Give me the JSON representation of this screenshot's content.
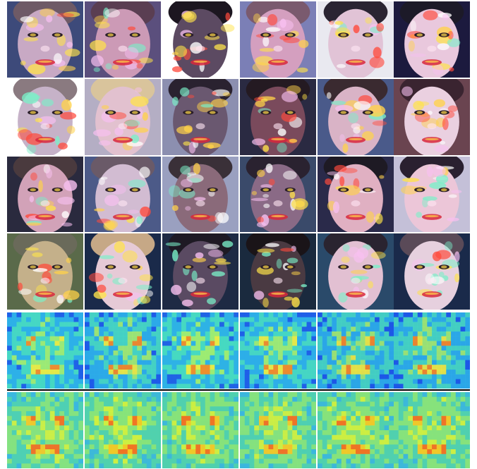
{
  "figure": {
    "rows": [
      {
        "kind": "face-overlay",
        "cells": [
          {
            "skin": "#c8a9c4",
            "hair": "#6e5a66",
            "bg": "#3d4a7a"
          },
          {
            "skin": "#cc9ab6",
            "hair": "#5a3e52",
            "bg": "#5b4f7d"
          },
          {
            "skin": "#5c4a62",
            "hair": "#1c1620",
            "bg": "#ffffff"
          },
          {
            "skin": "#d49fbf",
            "hair": "#7a5a6e",
            "bg": "#7b7fb6"
          },
          {
            "skin": "#e1c3d6",
            "hair": "#2a2432",
            "bg": "#e9e9f0"
          },
          {
            "skin": "#e9c8dd",
            "hair": "#1c1a28",
            "bg": "#1c1a3e"
          }
        ]
      },
      {
        "kind": "face-overlay",
        "cells": [
          {
            "skin": "#c6b2c8",
            "hair": "#8a7a80",
            "bg": "#ffffff"
          },
          {
            "skin": "#e2c1cf",
            "hair": "#d9c49c",
            "bg": "#b4aec4"
          },
          {
            "skin": "#6a5870",
            "hair": "#2a2230",
            "bg": "#8c8fb0"
          },
          {
            "skin": "#7a4a5c",
            "hair": "#241a22",
            "bg": "#2a2a42"
          },
          {
            "skin": "#d9b3c6",
            "hair": "#3a2a30",
            "bg": "#4a5a8a"
          },
          {
            "skin": "#ead0e0",
            "hair": "#3a2430",
            "bg": "#6a4450"
          }
        ]
      },
      {
        "kind": "face-overlay",
        "cells": [
          {
            "skin": "#d2a2b8",
            "hair": "#4a3a3e",
            "bg": "#2a2a3e"
          },
          {
            "skin": "#d2bcd2",
            "hair": "#6a5a68",
            "bg": "#4c5a88"
          },
          {
            "skin": "#8a6a7a",
            "hair": "#3a3038",
            "bg": "#9aa0c0"
          },
          {
            "skin": "#8a6a86",
            "hair": "#2a2230",
            "bg": "#3a4a6a"
          },
          {
            "skin": "#e0b0c2",
            "hair": "#1e1a24",
            "bg": "#2a2a4a"
          },
          {
            "skin": "#ecc6d8",
            "hair": "#2a2030",
            "bg": "#c4c0d8"
          }
        ]
      },
      {
        "kind": "face-overlay",
        "cells": [
          {
            "skin": "#c4b08a",
            "hair": "#6a6a5a",
            "bg": "#5a6a4a"
          },
          {
            "skin": "#e6cad6",
            "hair": "#c6a886",
            "bg": "#1a2a4a"
          },
          {
            "skin": "#5a4a62",
            "hair": "#1e1a24",
            "bg": "#1e2a44"
          },
          {
            "skin": "#4a3a42",
            "hair": "#1a1418",
            "bg": "#1a2a3e"
          },
          {
            "skin": "#e2c0d2",
            "hair": "#2a2430",
            "bg": "#2a4a6a"
          },
          {
            "skin": "#e6d0de",
            "hair": "#5a4a58",
            "bg": "#1a2a4a"
          }
        ]
      },
      {
        "kind": "heatmap",
        "cells": [
          {
            "base": "#2eb0e8"
          },
          {
            "base": "#1e6ce6"
          },
          {
            "base": "#38c4c8"
          },
          {
            "base": "#2a9ae8"
          },
          {
            "base": "#1840e0"
          },
          {
            "base": "#1a4ee0"
          }
        ]
      },
      {
        "kind": "heatmap",
        "cells": [
          {
            "base": "#3cc6d0"
          },
          {
            "base": "#5cd08a"
          },
          {
            "base": "#54cc9a"
          },
          {
            "base": "#44c2c0"
          },
          {
            "base": "#58cc9a"
          },
          {
            "base": "#50c8a6"
          }
        ]
      }
    ]
  }
}
